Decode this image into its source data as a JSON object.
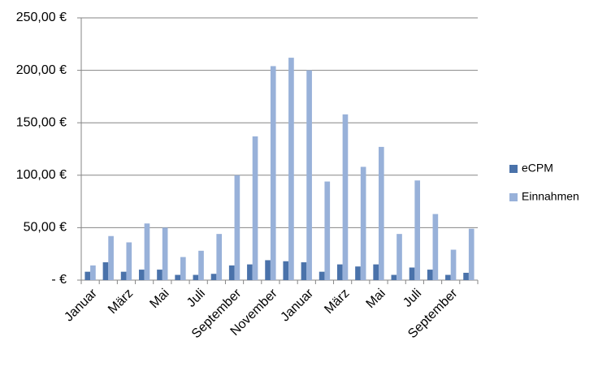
{
  "chart_data": {
    "type": "bar",
    "categories": [
      "Januar",
      null,
      "März",
      null,
      "Mai",
      null,
      "Juli",
      null,
      "September",
      null,
      "November",
      null,
      "Januar",
      null,
      "März",
      null,
      "Mai",
      null,
      "Juli",
      null,
      "September",
      null
    ],
    "series": [
      {
        "name": "eCPM",
        "color": "#4a72aa",
        "values": [
          8,
          17,
          8,
          10,
          10,
          5,
          5,
          6,
          14,
          15,
          19,
          18,
          17,
          8,
          15,
          13,
          15,
          5,
          12,
          10,
          5,
          7
        ]
      },
      {
        "name": "Einnahmen",
        "color": "#98b1d9",
        "values": [
          14,
          42,
          36,
          54,
          50,
          22,
          28,
          44,
          100,
          137,
          204,
          212,
          200,
          94,
          158,
          108,
          127,
          44,
          95,
          63,
          29,
          49
        ]
      }
    ],
    "ylim": [
      0,
      250
    ],
    "yticks": [
      {
        "value": 0,
        "label": "-  €"
      },
      {
        "value": 50,
        "label": "50,00 €"
      },
      {
        "value": 100,
        "label": "100,00 €"
      },
      {
        "value": 150,
        "label": "150,00 €"
      },
      {
        "value": 200,
        "label": "200,00 €"
      },
      {
        "value": 250,
        "label": "250,00 €"
      }
    ],
    "grid": true,
    "legend": "right"
  }
}
